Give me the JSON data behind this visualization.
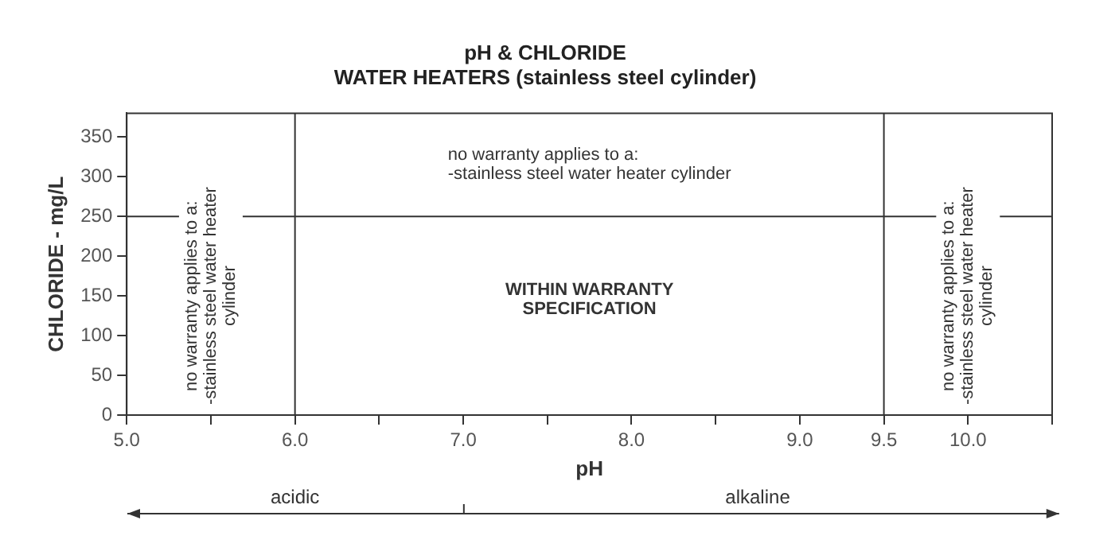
{
  "chart_data": {
    "type": "line",
    "title": "pH & CHLORIDE\nWATER HEATERS (stainless steel cylinder)",
    "xlabel": "pH",
    "ylabel": "CHLORIDE - mg/L",
    "xlim": [
      5,
      10.5
    ],
    "xticks": [
      {
        "value": 5,
        "label": "5.0"
      },
      {
        "value": 5.5,
        "label": null
      },
      {
        "value": 6,
        "label": "6.0"
      },
      {
        "value": 6.5,
        "label": null
      },
      {
        "value": 7,
        "label": "7.0"
      },
      {
        "value": 7.5,
        "label": null
      },
      {
        "value": 8,
        "label": "8.0"
      },
      {
        "value": 8.5,
        "label": null
      },
      {
        "value": 9,
        "label": "9.0"
      },
      {
        "value": 9.5,
        "label": "9.5"
      },
      {
        "value": 10,
        "label": "10.0"
      },
      {
        "value": 10.5,
        "label": null
      }
    ],
    "ylim": [
      0,
      380
    ],
    "yticks": [
      0,
      50,
      100,
      150,
      200,
      250,
      300,
      350
    ],
    "ref_lines": [
      {
        "axis": "x",
        "value": 6,
        "color": "#333333"
      },
      {
        "axis": "x",
        "value": 9.5,
        "color": "#333333"
      },
      {
        "axis": "y",
        "value": 250,
        "color": "#333333"
      }
    ],
    "annotations": [
      "no warranty applies to a:\n-stainless steel water heater\ncylinder",
      "no warranty applies to a:\n-stainless steel water heater cylinder",
      "WITHIN WARRANTY\nSPECIFICATION",
      "no warranty applies to a:\n-stainless steel water heater\ncylinder",
      "acidic",
      "alkaline"
    ],
    "grid": false,
    "legend": false
  }
}
